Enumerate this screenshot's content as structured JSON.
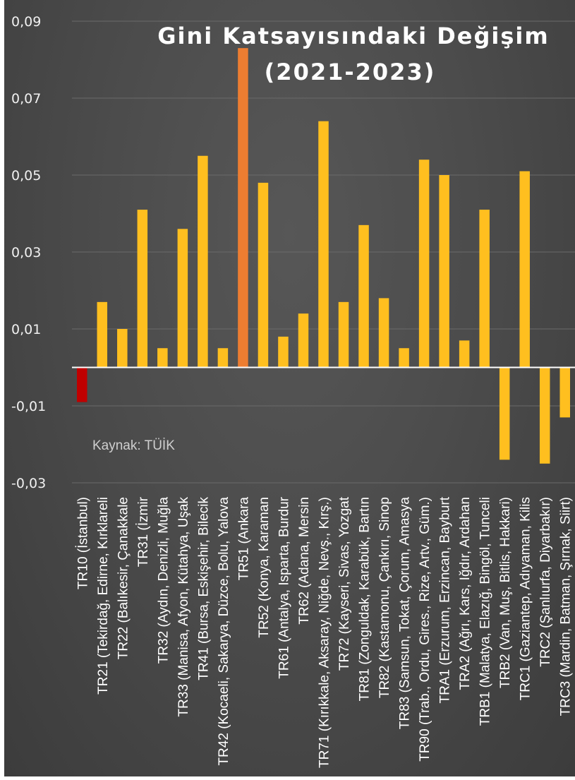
{
  "chart_data": {
    "type": "bar",
    "title_line1": "Gini Katsayısındaki Değişim",
    "title_line2": "(2021-2023)",
    "source": "Kaynak: TÜİK",
    "ylim": [
      -0.03,
      0.09
    ],
    "yticks": [
      0.09,
      0.07,
      0.05,
      0.03,
      0.01,
      -0.01,
      -0.03
    ],
    "ytick_labels": [
      "0,09",
      "0,07",
      "0,05",
      "0,03",
      "0,01",
      "-0,01",
      "-0,03"
    ],
    "grid": true,
    "categories": [
      "TR10 (İstanbul)",
      "TR21 (Tekirdağ, Edirne, Kırklareli",
      "TR22 (Balıkesir, Çanakkale",
      "TR31 (İzmir",
      "TR32 (Aydın, Denizli, Muğla",
      "TR33 (Manisa, Afyon, Kütahya, Uşak",
      "TR41 (Bursa, Eskişehir, Bilecik",
      "TR42 (Kocaeli, Sakarya, Düzce, Bolu, Yalova",
      "TR51 (Ankara",
      "TR52 (Konya, Karaman",
      "TR61 (Antalya, Isparta, Burdur",
      "TR62 (Adana, Mersin",
      "TR71 (Kırıkkale, Aksaray, Niğde, Nevş., Kırş.)",
      "TR72 (Kayseri, Sivas, Yozgat",
      "TR81 (Zonguldak, Karabük, Bartın",
      "TR82 (Kastamonu, Çankırı, Sinop",
      "TR83 (Samsun, Tokat, Çorum, Amasya",
      "TR90 (Trab., Ordu, Gires., Rize, Artv., Güm.)",
      "TRA1 (Erzurum, Erzincan, Bayburt",
      "TRA2 (Ağrı, Kars, Iğdır, Ardahan",
      "TRB1 (Malatya, Elazığ, Bingöl, Tunceli",
      "TRB2 (Van, Muş, Bitlis, Hakkari)",
      "TRC1 (Gaziantep, Adıyaman, Kilis",
      "TRC2 (Şanlıurfa, Diyarbakır)",
      "TRC3 (Mardin, Batman, Şırnak, Siirt)"
    ],
    "values": [
      -0.009,
      0.017,
      0.01,
      0.041,
      0.005,
      0.036,
      0.055,
      0.005,
      0.083,
      0.048,
      0.008,
      0.014,
      0.064,
      0.017,
      0.037,
      0.018,
      0.005,
      0.054,
      0.05,
      0.007,
      0.041,
      -0.024,
      0.051,
      -0.025,
      -0.013
    ],
    "bar_colors": [
      "#c00000",
      "#ffbf1f",
      "#ffbf1f",
      "#ffbf1f",
      "#ffbf1f",
      "#ffbf1f",
      "#ffbf1f",
      "#ffbf1f",
      "#ed7d31",
      "#ffbf1f",
      "#ffbf1f",
      "#ffbf1f",
      "#ffbf1f",
      "#ffbf1f",
      "#ffbf1f",
      "#ffbf1f",
      "#ffbf1f",
      "#ffbf1f",
      "#ffbf1f",
      "#ffbf1f",
      "#ffbf1f",
      "#ffbf1f",
      "#ffbf1f",
      "#ffbf1f",
      "#ffbf1f"
    ]
  }
}
